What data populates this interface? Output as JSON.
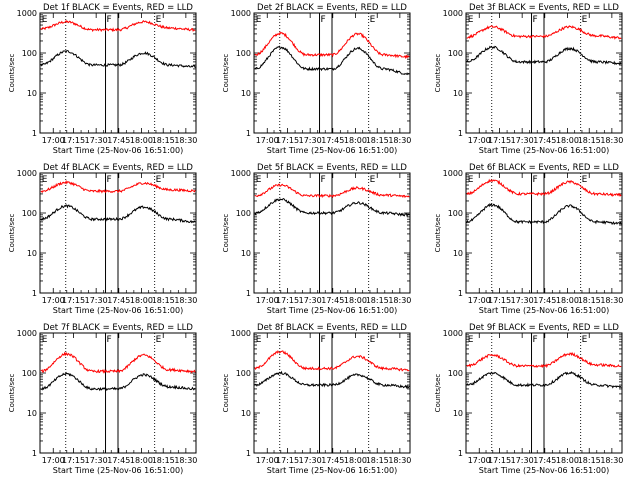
{
  "chart_data": [
    {
      "type": "line",
      "title": "Det 1f BLACK = Events, RED = LLD",
      "xlabel": "Start Time (25-Nov-06 16:51:00)",
      "ylabel": "Counts/sec",
      "yscale": "log",
      "ylim": [
        1,
        1000
      ],
      "xticks": [
        "17:00",
        "17:15",
        "17:30",
        "17:45",
        "18:00",
        "18:15",
        "18:30"
      ],
      "yticks": [
        "1",
        "10",
        "100",
        "1000"
      ],
      "markers": [
        "E",
        "F",
        "E"
      ],
      "series": [
        {
          "color": "#ff0000",
          "profile": [
            400,
            600,
            380,
            380,
            600,
            420,
            380
          ]
        },
        {
          "color": "#000000",
          "profile": [
            50,
            110,
            50,
            50,
            100,
            50,
            45
          ]
        }
      ]
    },
    {
      "type": "line",
      "title": "Det 2f BLACK = Events, RED = LLD",
      "xlabel": "Start Time (25-Nov-06 16:51:00)",
      "ylabel": "Counts/sec",
      "yscale": "log",
      "ylim": [
        1,
        1000
      ],
      "xticks": [
        "17:00",
        "17:15",
        "17:30",
        "17:45",
        "18:00",
        "18:15",
        "18:30"
      ],
      "yticks": [
        "1",
        "10",
        "100",
        "1000"
      ],
      "markers": [
        "E",
        "F",
        "E"
      ],
      "series": [
        {
          "color": "#ff0000",
          "profile": [
            90,
            310,
            90,
            90,
            300,
            90,
            80
          ]
        },
        {
          "color": "#000000",
          "profile": [
            40,
            140,
            40,
            40,
            130,
            40,
            30
          ]
        }
      ]
    },
    {
      "type": "line",
      "title": "Det 3f BLACK = Events, RED = LLD",
      "xlabel": "Start Time (25-Nov-06 16:51:00)",
      "ylabel": "Counts/sec",
      "yscale": "log",
      "ylim": [
        1,
        1000
      ],
      "xticks": [
        "17:00",
        "17:15",
        "17:30",
        "17:45",
        "18:00",
        "18:15",
        "18:30"
      ],
      "yticks": [
        "1",
        "10",
        "100",
        "1000"
      ],
      "markers": [
        "E",
        "F",
        "E"
      ],
      "series": [
        {
          "color": "#ff0000",
          "profile": [
            250,
            450,
            260,
            260,
            450,
            270,
            240
          ]
        },
        {
          "color": "#000000",
          "profile": [
            60,
            140,
            60,
            60,
            130,
            60,
            55
          ]
        }
      ]
    },
    {
      "type": "line",
      "title": "Det 4f BLACK = Events, RED = LLD",
      "xlabel": "Start Time (25-Nov-06 16:51:00)",
      "ylabel": "Counts/sec",
      "yscale": "log",
      "ylim": [
        1,
        1000
      ],
      "xticks": [
        "17:00",
        "17:15",
        "17:30",
        "17:45",
        "18:00",
        "18:15",
        "18:30"
      ],
      "yticks": [
        "1",
        "10",
        "100",
        "1000"
      ],
      "markers": [
        "E",
        "F",
        "E"
      ],
      "series": [
        {
          "color": "#ff0000",
          "profile": [
            350,
            580,
            350,
            350,
            560,
            380,
            360
          ]
        },
        {
          "color": "#000000",
          "profile": [
            70,
            150,
            70,
            70,
            140,
            70,
            60
          ]
        }
      ]
    },
    {
      "type": "line",
      "title": "Det 5f BLACK = Events, RED = LLD",
      "xlabel": "Start Time (25-Nov-06 16:51:00)",
      "ylabel": "Counts/sec",
      "yscale": "log",
      "ylim": [
        1,
        1000
      ],
      "xticks": [
        "17:00",
        "17:15",
        "17:30",
        "17:45",
        "18:00",
        "18:15",
        "18:30"
      ],
      "yticks": [
        "1",
        "10",
        "100",
        "1000"
      ],
      "markers": [
        "E",
        "F",
        "E"
      ],
      "series": [
        {
          "color": "#ff0000",
          "profile": [
            270,
            500,
            270,
            270,
            420,
            280,
            260
          ]
        },
        {
          "color": "#000000",
          "profile": [
            100,
            220,
            100,
            100,
            180,
            100,
            90
          ]
        }
      ]
    },
    {
      "type": "line",
      "title": "Det 6f BLACK = Events, RED = LLD",
      "xlabel": "Start Time (25-Nov-06 16:51:00)",
      "ylabel": "Counts/sec",
      "yscale": "log",
      "ylim": [
        1,
        1000
      ],
      "xticks": [
        "17:00",
        "17:15",
        "17:30",
        "17:45",
        "18:00",
        "18:15",
        "18:30"
      ],
      "yticks": [
        "1",
        "10",
        "100",
        "1000"
      ],
      "markers": [
        "E",
        "F",
        "E"
      ],
      "series": [
        {
          "color": "#ff0000",
          "profile": [
            300,
            650,
            300,
            300,
            600,
            300,
            280
          ]
        },
        {
          "color": "#000000",
          "profile": [
            60,
            160,
            60,
            60,
            150,
            60,
            55
          ]
        }
      ]
    },
    {
      "type": "line",
      "title": "Det 7f BLACK = Events, RED = LLD",
      "xlabel": "Start Time (25-Nov-06 16:51:00)",
      "ylabel": "Counts/sec",
      "yscale": "log",
      "ylim": [
        1,
        1000
      ],
      "xticks": [
        "17:00",
        "17:15",
        "17:30",
        "17:45",
        "18:00",
        "18:15",
        "18:30"
      ],
      "yticks": [
        "1",
        "10",
        "100",
        "1000"
      ],
      "markers": [
        "E",
        "F",
        "E"
      ],
      "series": [
        {
          "color": "#ff0000",
          "profile": [
            110,
            300,
            110,
            110,
            280,
            120,
            110
          ]
        },
        {
          "color": "#000000",
          "profile": [
            40,
            95,
            40,
            40,
            90,
            45,
            40
          ]
        }
      ]
    },
    {
      "type": "line",
      "title": "Det 8f BLACK = Events, RED = LLD",
      "xlabel": "Start Time (25-Nov-06 16:51:00)",
      "ylabel": "Counts/sec",
      "yscale": "log",
      "ylim": [
        1,
        1000
      ],
      "xticks": [
        "17:00",
        "17:15",
        "17:30",
        "17:45",
        "18:00",
        "18:15",
        "18:30"
      ],
      "yticks": [
        "1",
        "10",
        "100",
        "1000"
      ],
      "markers": [
        "E",
        "F",
        "E"
      ],
      "series": [
        {
          "color": "#ff0000",
          "profile": [
            130,
            340,
            130,
            130,
            260,
            130,
            120
          ]
        },
        {
          "color": "#000000",
          "profile": [
            50,
            100,
            50,
            50,
            90,
            50,
            45
          ]
        }
      ]
    },
    {
      "type": "line",
      "title": "Det 9f BLACK = Events, RED = LLD",
      "xlabel": "Start Time (25-Nov-06 16:51:00)",
      "ylabel": "Counts/sec",
      "yscale": "log",
      "ylim": [
        1,
        1000
      ],
      "xticks": [
        "17:00",
        "17:15",
        "17:30",
        "17:45",
        "18:00",
        "18:15",
        "18:30"
      ],
      "yticks": [
        "1",
        "10",
        "100",
        "1000"
      ],
      "markers": [
        "E",
        "F",
        "E"
      ],
      "series": [
        {
          "color": "#ff0000",
          "profile": [
            150,
            280,
            150,
            150,
            300,
            160,
            150
          ]
        },
        {
          "color": "#000000",
          "profile": [
            50,
            100,
            50,
            50,
            100,
            50,
            45
          ]
        }
      ]
    }
  ]
}
